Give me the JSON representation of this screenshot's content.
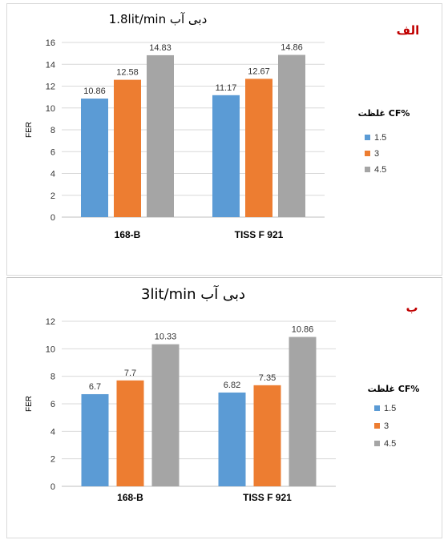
{
  "chart_data": [
    {
      "type": "bar",
      "panel_label": "الف",
      "title": "دبی آب 1.8lit/min",
      "ylabel": "FER",
      "ylim": [
        0,
        16
      ],
      "yticks": [
        0,
        2,
        4,
        6,
        8,
        10,
        12,
        14,
        16
      ],
      "categories": [
        "168-B",
        "TISS F 921"
      ],
      "legend_title": "غلظت CF%",
      "series": [
        {
          "name": "1.5",
          "color": "#5b9bd5",
          "values": [
            10.86,
            11.17
          ]
        },
        {
          "name": "3",
          "color": "#ed7d31",
          "values": [
            12.58,
            12.67
          ]
        },
        {
          "name": "4.5",
          "color": "#a5a5a5",
          "values": [
            14.83,
            14.86
          ]
        }
      ],
      "grid": true,
      "legend_position": "right"
    },
    {
      "type": "bar",
      "panel_label": "ب",
      "title": "دبی آب 3lit/min",
      "ylabel": "FER",
      "ylim": [
        0,
        12
      ],
      "yticks": [
        0,
        2,
        4,
        6,
        8,
        10,
        12
      ],
      "categories": [
        "168-B",
        "TISS F 921"
      ],
      "legend_title": "غلظت CF%",
      "series": [
        {
          "name": "1.5",
          "color": "#5b9bd5",
          "values": [
            6.7,
            6.82
          ]
        },
        {
          "name": "3",
          "color": "#ed7d31",
          "values": [
            7.7,
            7.35
          ]
        },
        {
          "name": "4.5",
          "color": "#a5a5a5",
          "values": [
            10.33,
            10.86
          ]
        }
      ],
      "grid": true,
      "legend_position": "right"
    }
  ]
}
